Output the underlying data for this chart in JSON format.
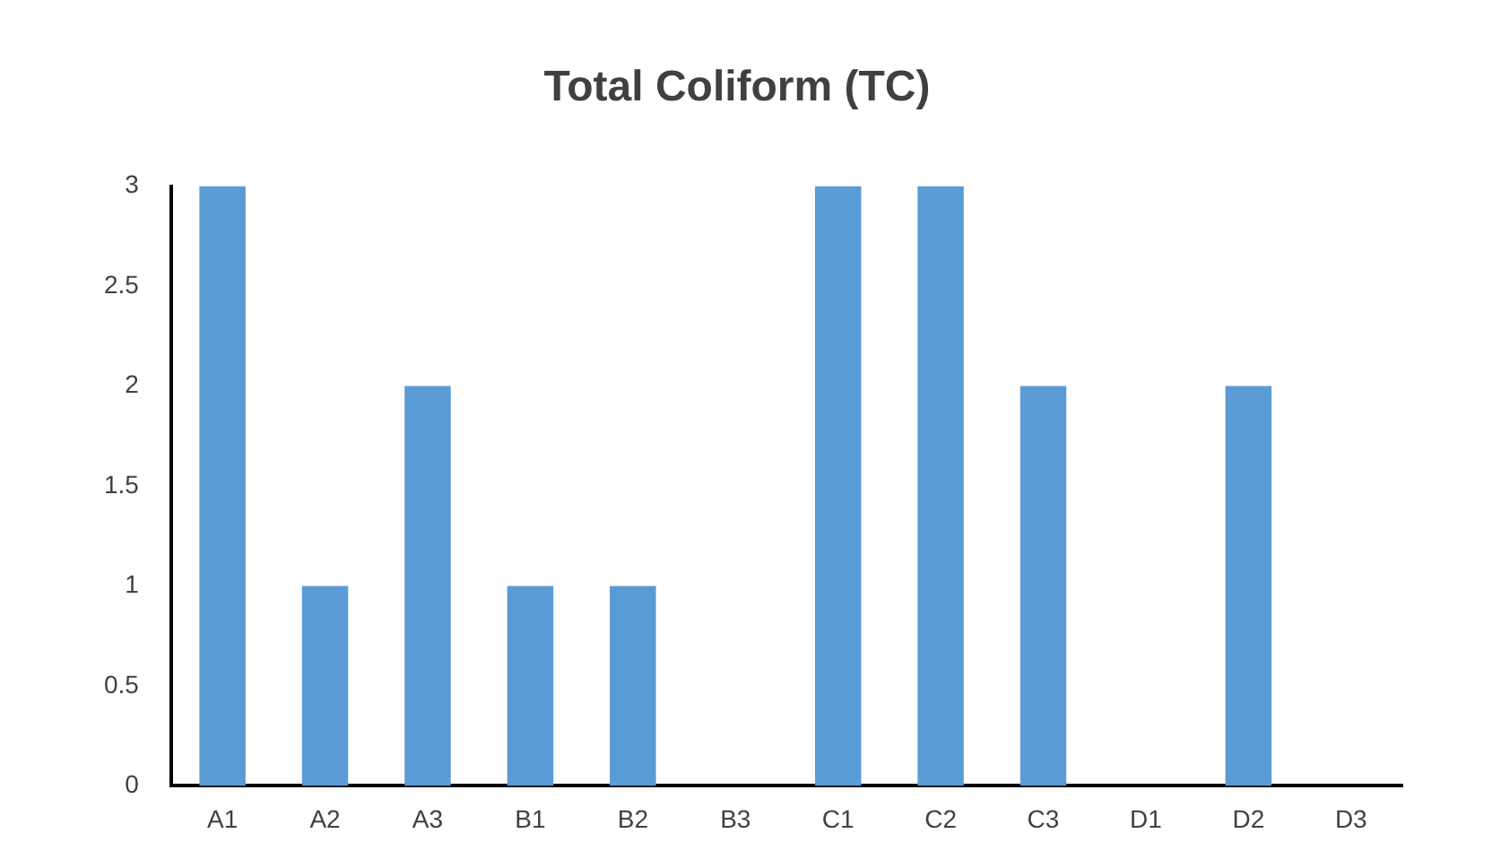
{
  "chart_data": {
    "type": "bar",
    "title": "Total Coliform (TC)",
    "categories": [
      "A1",
      "A2",
      "A3",
      "B1",
      "B2",
      "B3",
      "C1",
      "C2",
      "C3",
      "D1",
      "D2",
      "D3"
    ],
    "values": [
      3,
      1,
      2,
      1,
      1,
      0,
      3,
      3,
      2,
      0,
      2,
      0
    ],
    "color": "#5b9bd5",
    "ylim": [
      0,
      3
    ],
    "yticks": [
      0,
      0.5,
      1,
      1.5,
      2,
      2.5,
      3
    ],
    "grid": false,
    "legend": false
  }
}
